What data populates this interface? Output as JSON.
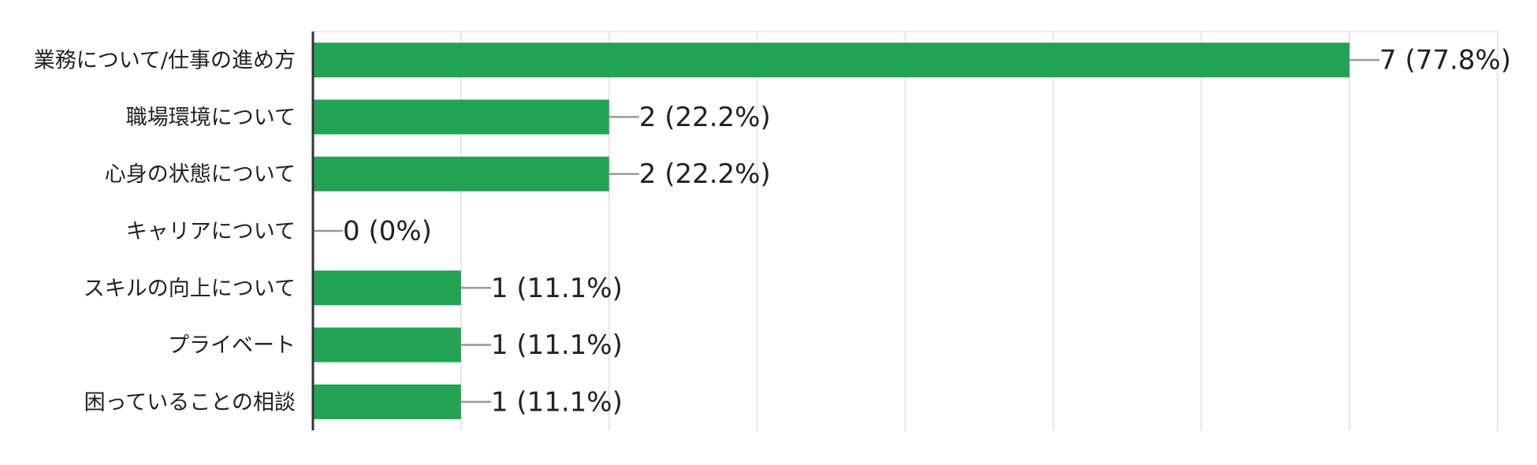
{
  "chart_data": {
    "type": "hbar",
    "categories": [
      "業務について/仕事の進め方",
      "職場環境について",
      "心身の状態について",
      "キャリアについて",
      "スキルの向上について",
      "プライベート",
      "困っていることの相談"
    ],
    "values": [
      7,
      2,
      2,
      0,
      1,
      1,
      1
    ],
    "value_labels": [
      "7 (77.8%)",
      "2 (22.2%)",
      "2 (22.2%)",
      "0 (0%)",
      "1 (11.1%)",
      "1 (11.1%)",
      "1 (11.1%)"
    ],
    "color": "#22a354",
    "xlim": [
      0,
      8
    ],
    "xticks": [
      0,
      1,
      2,
      3,
      4,
      5,
      6,
      7,
      8
    ],
    "grid": true
  }
}
